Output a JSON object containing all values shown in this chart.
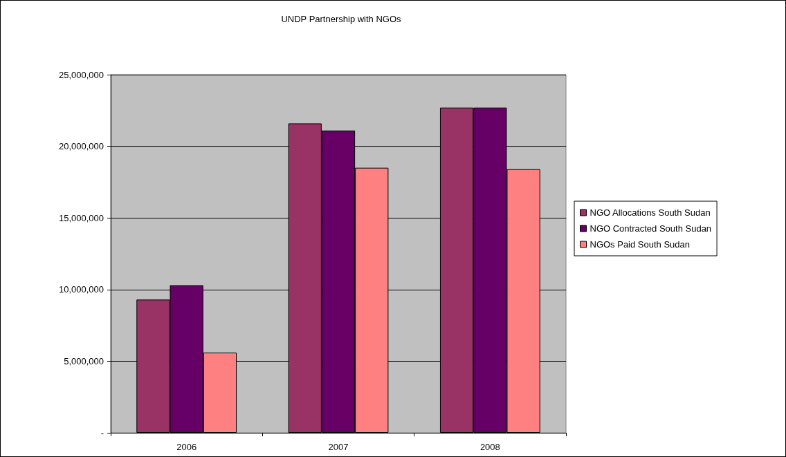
{
  "chart_data": {
    "type": "bar",
    "title": "UNDP Partnership with NGOs",
    "categories": [
      "2006",
      "2007",
      "2008"
    ],
    "series": [
      {
        "name": "NGO Allocations South Sudan",
        "color": "#993366",
        "values": [
          9300000,
          21600000,
          22700000
        ]
      },
      {
        "name": "NGO Contracted South Sudan",
        "color": "#660066",
        "values": [
          10300000,
          21100000,
          22700000
        ]
      },
      {
        "name": "NGOs Paid South Sudan",
        "color": "#ff8080",
        "values": [
          5600000,
          18500000,
          18400000
        ]
      }
    ],
    "ylim": [
      0,
      25000000
    ],
    "yticks": [
      {
        "value": 0,
        "label": "-"
      },
      {
        "value": 5000000,
        "label": "5,000,000"
      },
      {
        "value": 10000000,
        "label": "10,000,000"
      },
      {
        "value": 15000000,
        "label": "15,000,000"
      },
      {
        "value": 20000000,
        "label": "20,000,000"
      },
      {
        "value": 25000000,
        "label": "25,000,000"
      }
    ],
    "grid": "y",
    "legend": "right"
  }
}
